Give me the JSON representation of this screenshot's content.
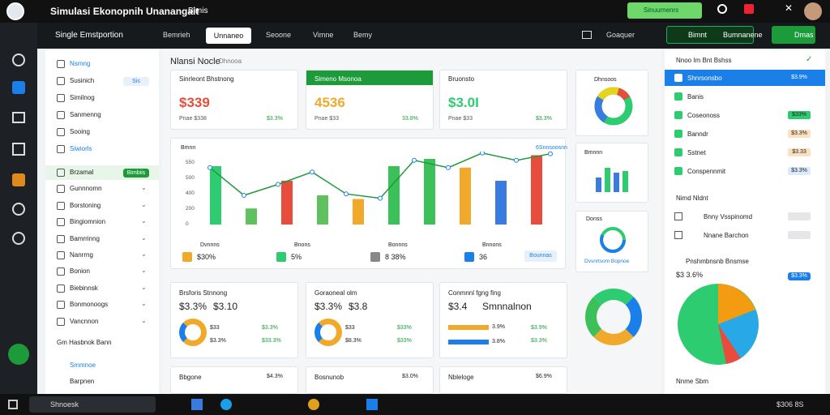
{
  "window": {
    "title": "Simulasi Ekonopnih Unanangait",
    "menu": "Bimis",
    "btn": "Sinuurnenrs"
  },
  "nav": {
    "project": "Single Emstportion",
    "tabs": [
      "Bemrieh",
      "Unnaneo",
      "Seoone",
      "Vimne",
      "Bemy"
    ],
    "action": "Goaquer",
    "save": "Bimnt",
    "mode": "Bumnanene",
    "ok": "Dmas"
  },
  "sidebar": {
    "items": [
      {
        "label": "Nsmng",
        "active": true
      },
      {
        "label": "Susinich",
        "badge": "Sis"
      },
      {
        "label": "Similnog"
      },
      {
        "label": "Sanmenng"
      },
      {
        "label": "Sooing"
      },
      {
        "label": "Siwiorls"
      },
      {
        "label": "Brzamal",
        "badge": "Bimbiis"
      },
      {
        "label": "Gunnnomn"
      },
      {
        "label": "Borstoning"
      },
      {
        "label": "Bingiomnion"
      },
      {
        "label": "Bamrrinng"
      },
      {
        "label": "Nanrrng"
      },
      {
        "label": "Bonion"
      },
      {
        "label": "Biebinnsk"
      },
      {
        "label": "Bonmonoogs"
      },
      {
        "label": "Vancnnon"
      }
    ],
    "section": "Gm Hasbnok Bann",
    "foot": [
      "Smmnoe",
      "Barpnen"
    ]
  },
  "header": {
    "title": "Nlansi Nocle",
    "sub": "Dhnooa"
  },
  "kpi": [
    {
      "title": "Sinrleont Bhstnong",
      "value": "$339",
      "sub": "Pnae $338",
      "change": "$3.3%"
    },
    {
      "title": "Simeno Msonoa",
      "value": "4536",
      "sub": "Pnae $33",
      "change": "33.8%"
    },
    {
      "title": "Bruonsto",
      "value": "$3.0I",
      "sub": "Pnae $33",
      "change": "$3.3%"
    }
  ],
  "mini": {
    "donut": "Dhnsoos",
    "bars": "Bmnnn",
    "gauge": "Donss",
    "gauge_sub": "Dvsnrtsom Bopnoe"
  },
  "chart_data": {
    "type": "bar",
    "title": "Bmnn",
    "y_ticks": [
      "550",
      "500",
      "400",
      "200",
      "0"
    ],
    "top_right": "6Snnsoosnn",
    "bars": [
      {
        "v": 0.8,
        "c": "#2ecc71"
      },
      {
        "v": 0.22,
        "c": "#5ec15e"
      },
      {
        "v": 0.6,
        "c": "#e74c3c"
      },
      {
        "v": 0.4,
        "c": "#5ec15e"
      },
      {
        "v": 0.35,
        "c": "#f0a92b"
      },
      {
        "v": 0.8,
        "c": "#3cc15a"
      },
      {
        "v": 0.9,
        "c": "#3cc15a"
      },
      {
        "v": 0.78,
        "c": "#f0a92b"
      },
      {
        "v": 0.6,
        "c": "#3a7be0"
      },
      {
        "v": 0.95,
        "c": "#e74c3c"
      }
    ],
    "line": [
      0.78,
      0.4,
      0.55,
      0.72,
      0.42,
      0.36,
      0.88,
      0.78,
      0.98,
      0.88,
      0.97
    ],
    "legend": [
      {
        "t": "Dvnnns",
        "v": "$30%"
      },
      {
        "t": "Bnons",
        "v": "5%"
      },
      {
        "t": "Bonnns",
        "v": "8 38%"
      },
      {
        "t": "Bnnons",
        "v": "36"
      }
    ],
    "btn": "Bounnas"
  },
  "lower": [
    {
      "title": "Brsforis Stnnong",
      "a": "$3.3%",
      "b": "$3.10",
      "r1": "$3.3%",
      "r2": "$33.3%",
      "l1": "$33",
      "l2": "$3.3%"
    },
    {
      "title": "Goraoneal olm",
      "a": "$3.3%",
      "b": "$3.8",
      "r1": "$33%",
      "r2": "$33%",
      "l1": "$33",
      "l2": "$8.3%"
    },
    {
      "title": "Conmnnl fgng fing",
      "a": "$3.4",
      "b": "Smnnalnon",
      "r1": "$3.9%",
      "r2": "$3.3%",
      "l1": "3.9%",
      "l2": "3.8%"
    }
  ],
  "bottom": [
    {
      "t": "Bbgone",
      "v": "$4.3%"
    },
    {
      "t": "Bosnunob",
      "v": "$3.0%"
    },
    {
      "t": "Nbleloge",
      "v": "$6.9%"
    }
  ],
  "right": {
    "title": "Nnoo Im Bnt Bshss",
    "rows": [
      {
        "t": "Shnrsonsbo",
        "b": "$3.9%",
        "sel": true
      },
      {
        "t": "Banis"
      },
      {
        "t": "Coseonoss",
        "b": "$33%"
      },
      {
        "t": "Banndr",
        "b": "$3.3%"
      },
      {
        "t": "Sstnet",
        "b": "$3.33"
      },
      {
        "t": "Conspennmit",
        "b": "$3.3%"
      }
    ],
    "sec": "Nimd Nldnt",
    "rows2": [
      {
        "t": "Bnny Vsspinomd"
      },
      {
        "t": "Nnane Barchon"
      }
    ],
    "pie_title": "Pnshmbnsnb Bnsmse",
    "pie_val": "$3 3.6%",
    "pie_btn": "$3.3%",
    "foot": "Nnme Sbm"
  },
  "taskbar": {
    "search": "Shnoesk",
    "time": "$306 8S"
  },
  "colors": {
    "accent": "#21a336",
    "blue": "#1a7fe8"
  }
}
